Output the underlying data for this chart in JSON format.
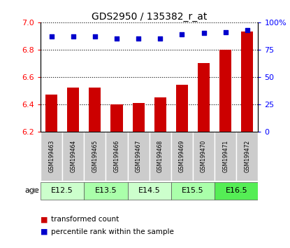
{
  "title": "GDS2950 / 135382_r_at",
  "samples": [
    "GSM199463",
    "GSM199464",
    "GSM199465",
    "GSM199466",
    "GSM199467",
    "GSM199468",
    "GSM199469",
    "GSM199470",
    "GSM199471",
    "GSM199472"
  ],
  "bar_values": [
    6.47,
    6.52,
    6.52,
    6.4,
    6.41,
    6.45,
    6.54,
    6.7,
    6.8,
    6.93
  ],
  "percentile_values": [
    87,
    87,
    87,
    85,
    85,
    85,
    89,
    90,
    91,
    93
  ],
  "ylim_left": [
    6.2,
    7.0
  ],
  "ylim_right": [
    0,
    100
  ],
  "yticks_left": [
    6.2,
    6.4,
    6.6,
    6.8,
    7.0
  ],
  "yticks_right": [
    0,
    25,
    50,
    75,
    100
  ],
  "bar_color": "#cc0000",
  "dot_color": "#0000cc",
  "age_groups": [
    {
      "label": "E12.5",
      "samples": [
        0,
        1
      ],
      "color": "#ccffcc"
    },
    {
      "label": "E13.5",
      "samples": [
        2,
        3
      ],
      "color": "#aaffaa"
    },
    {
      "label": "E14.5",
      "samples": [
        4,
        5
      ],
      "color": "#ccffcc"
    },
    {
      "label": "E15.5",
      "samples": [
        6,
        7
      ],
      "color": "#aaffaa"
    },
    {
      "label": "E16.5",
      "samples": [
        8,
        9
      ],
      "color": "#55ee55"
    }
  ],
  "sample_box_color": "#cccccc",
  "age_label": "age",
  "legend_items": [
    {
      "color": "#cc0000",
      "label": "transformed count"
    },
    {
      "color": "#0000cc",
      "label": "percentile rank within the sample"
    }
  ]
}
